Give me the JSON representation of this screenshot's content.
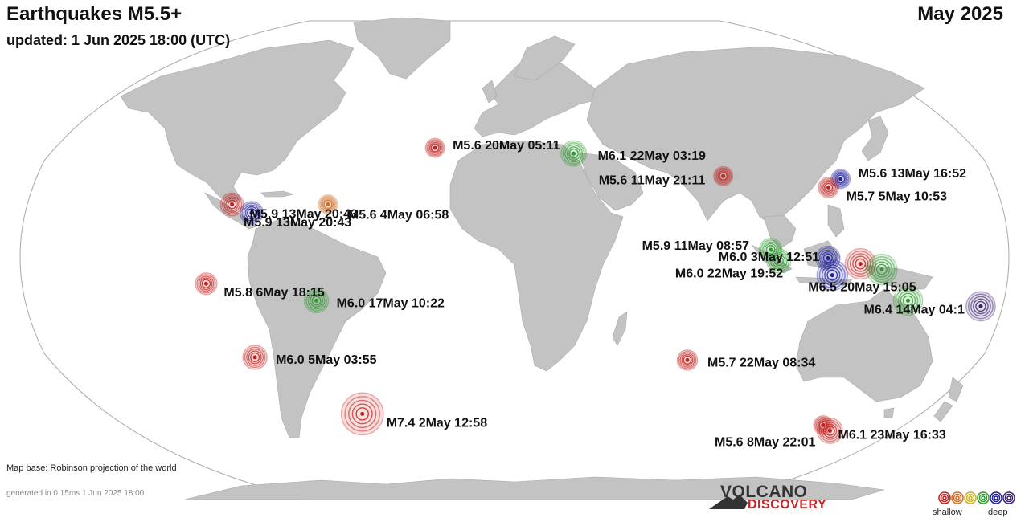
{
  "header": {
    "title": "Earthquakes M5.5+",
    "period": "May 2025",
    "updated": "updated:  1 Jun 2025 18:00 (UTC)"
  },
  "footer": {
    "map_base": "Map base: Robinson projection of the world",
    "generated": "generated in 0.15ms  1 Jun 2025 18:00",
    "brand_top": "VOLCANO",
    "brand_bottom": "DISCOVERY"
  },
  "legend": {
    "shallow_label": "shallow",
    "deep_label": "deep",
    "depth_colors": [
      "#c0201e",
      "#d06a20",
      "#c8b020",
      "#2e9a2e",
      "#1d1d9e",
      "#3a2070"
    ]
  },
  "colors": {
    "ocean": "#ffffff",
    "land": "#c3c3c3",
    "outline": "#aaaaaa"
  },
  "earthquakes": [
    {
      "label": "M5.6 20May 05:11",
      "magnitude": 5.6,
      "lat": 38,
      "lon": -29,
      "depth_color": "#c0201e"
    },
    {
      "label": "M6.1 22May 03:19",
      "magnitude": 6.1,
      "lat": 36,
      "lon": 27,
      "depth_color": "#2e9a2e"
    },
    {
      "label": "M5.6 11May 21:11",
      "magnitude": 5.6,
      "lat": 28,
      "lon": 84,
      "depth_color": "#c0201e"
    },
    {
      "label": "M5.6 13May 16:52",
      "magnitude": 5.6,
      "lat": 27,
      "lon": 129,
      "depth_color": "#1d1d9e"
    },
    {
      "label": "M5.7  5May 10:53",
      "magnitude": 5.7,
      "lat": 24,
      "lon": 123,
      "depth_color": "#c0201e"
    },
    {
      "label": "M5.9 13May 20:43",
      "magnitude": 5.9,
      "lat": 18,
      "lon": -103,
      "depth_color": "#c0201e"
    },
    {
      "label": "M5.9 13May 20:43",
      "magnitude": 5.9,
      "lat": 15,
      "lon": -95,
      "depth_color": "#1d1d9e"
    },
    {
      "label": "M5.6  4May 06:58",
      "magnitude": 5.6,
      "lat": 18,
      "lon": -67,
      "depth_color": "#d06a20"
    },
    {
      "label": "M5.8  6May 18:15",
      "magnitude": 5.8,
      "lat": -10,
      "lon": -111,
      "depth_color": "#c0201e"
    },
    {
      "label": "M6.0 17May 10:22",
      "magnitude": 6.0,
      "lat": -16,
      "lon": -71,
      "depth_color": "#2e9a2e"
    },
    {
      "label": "M6.0  5May 03:55",
      "magnitude": 6.0,
      "lat": -36,
      "lon": -101,
      "depth_color": "#c0201e"
    },
    {
      "label": "M7.4  2May 12:58",
      "magnitude": 7.4,
      "lat": -56,
      "lon": -66,
      "depth_color": "#c0201e"
    },
    {
      "label": "M5.7 22May 08:34",
      "magnitude": 5.7,
      "lat": -37,
      "lon": 73,
      "depth_color": "#c0201e"
    },
    {
      "label": "M5.9 11May 08:57",
      "magnitude": 5.9,
      "lat": 2,
      "lon": 97,
      "depth_color": "#2e9a2e"
    },
    {
      "label": "M6.0  3May 12:51",
      "magnitude": 6.0,
      "lat": -2,
      "lon": 100,
      "depth_color": "#2e9a2e"
    },
    {
      "label": "M6.0 22May 19:52",
      "magnitude": 6.0,
      "lat": -1,
      "lon": 118,
      "depth_color": "#1d1d9e"
    },
    {
      "label": "M6.5 20May 15:05",
      "magnitude": 6.5,
      "lat": -7,
      "lon": 120,
      "depth_color": "#1d1d9e"
    },
    {
      "label": "M6.5 20May 15:05",
      "magnitude": 6.5,
      "lat": -3,
      "lon": 130,
      "depth_color": "#c0201e"
    },
    {
      "label": "M6.5 20May 15:05",
      "magnitude": 6.5,
      "lat": -5,
      "lon": 138,
      "depth_color": "#2e9a2e"
    },
    {
      "label": "M6.4 14May 04:1",
      "magnitude": 6.4,
      "lat": -16,
      "lon": 150,
      "depth_color": "#2e9a2e"
    },
    {
      "label": "M6.4 14May 04:1",
      "magnitude": 6.4,
      "lat": -18,
      "lon": 178,
      "depth_color": "#3a2070"
    },
    {
      "label": "M5.6  8May 22:01",
      "magnitude": 5.6,
      "lat": -60,
      "lon": 150,
      "depth_color": "#c0201e"
    },
    {
      "label": "M6.1 23May 16:33",
      "magnitude": 6.1,
      "lat": -62,
      "lon": 156,
      "depth_color": "#c0201e"
    }
  ]
}
